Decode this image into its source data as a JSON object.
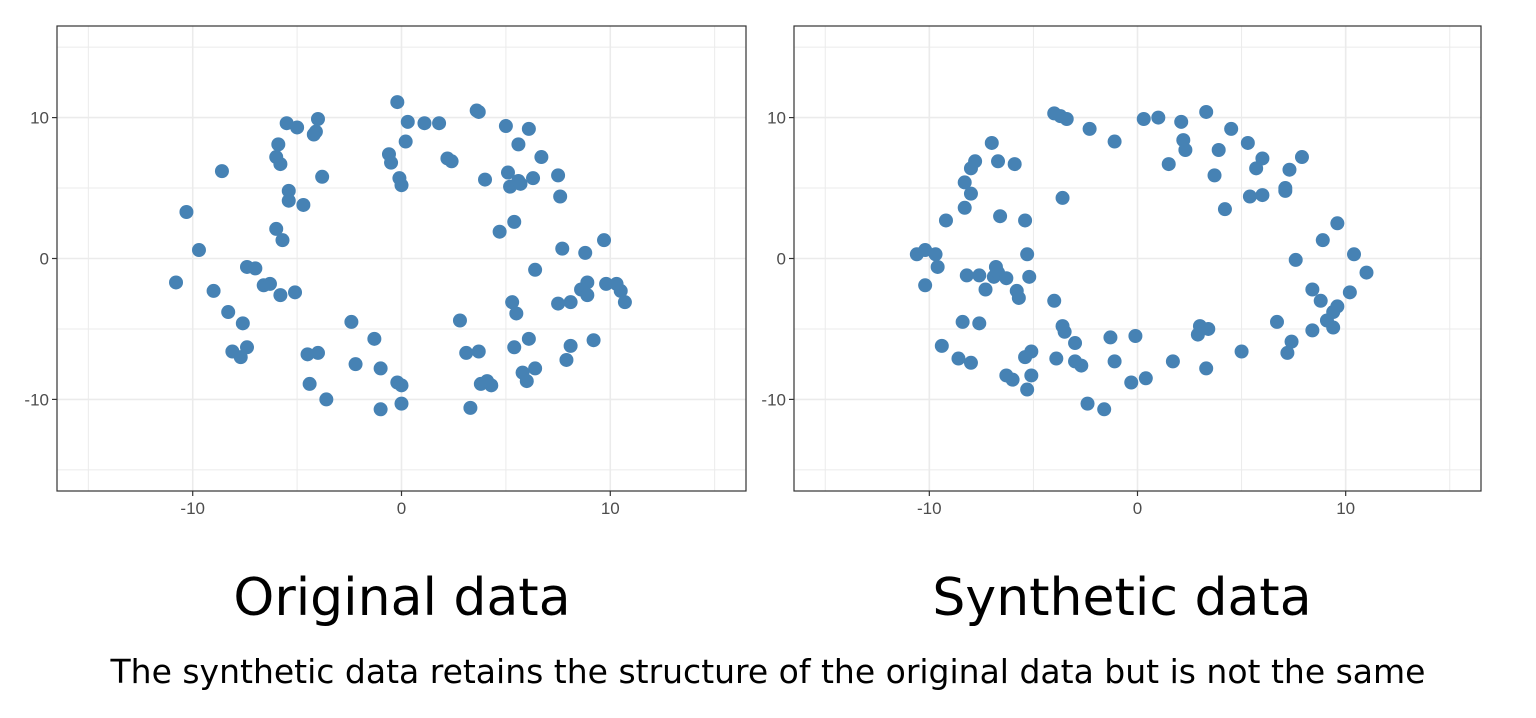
{
  "colors": {
    "point": "#4682b4",
    "grid": "#ebebeb",
    "panel_border": "#333333",
    "tick_text": "#4d4d4d",
    "background": "#ffffff"
  },
  "captions": {
    "left": "Original data",
    "right": "Synthetic data",
    "footnote": "The synthetic data retains the structure of the original data but is not the same"
  },
  "chart_data": [
    {
      "type": "scatter",
      "title": "",
      "xlabel": "",
      "ylabel": "",
      "xlim": [
        -16.5,
        16.5
      ],
      "ylim": [
        -16.5,
        16.5
      ],
      "xticks": [
        -10,
        0,
        10
      ],
      "yticks": [
        -10,
        0,
        10
      ],
      "grid": true,
      "points": [
        [
          -10.8,
          -1.7
        ],
        [
          -10.3,
          3.3
        ],
        [
          -9.7,
          0.6
        ],
        [
          -9.0,
          -2.3
        ],
        [
          -8.6,
          6.2
        ],
        [
          -8.3,
          -3.8
        ],
        [
          -8.1,
          -6.6
        ],
        [
          -7.7,
          -7.0
        ],
        [
          -7.6,
          -4.6
        ],
        [
          -7.4,
          -6.3
        ],
        [
          -7.4,
          -0.6
        ],
        [
          -7.0,
          -0.7
        ],
        [
          -6.6,
          -1.9
        ],
        [
          -6.3,
          -1.8
        ],
        [
          -6.0,
          7.2
        ],
        [
          -6.0,
          2.1
        ],
        [
          -5.9,
          8.1
        ],
        [
          -5.8,
          6.7
        ],
        [
          -5.8,
          -2.6
        ],
        [
          -5.7,
          1.3
        ],
        [
          -5.5,
          9.6
        ],
        [
          -5.4,
          4.8
        ],
        [
          -5.4,
          4.1
        ],
        [
          -5.1,
          -2.4
        ],
        [
          -5.0,
          9.3
        ],
        [
          -4.7,
          3.8
        ],
        [
          -4.5,
          -6.8
        ],
        [
          -4.4,
          -8.9
        ],
        [
          -4.2,
          8.8
        ],
        [
          -4.1,
          9.0
        ],
        [
          -4.0,
          -6.7
        ],
        [
          -4.0,
          9.9
        ],
        [
          -3.8,
          5.8
        ],
        [
          -3.6,
          -10.0
        ],
        [
          -2.4,
          -4.5
        ],
        [
          -2.2,
          -7.5
        ],
        [
          -1.3,
          -5.7
        ],
        [
          -1.0,
          -10.7
        ],
        [
          -1.0,
          -7.8
        ],
        [
          -0.6,
          7.4
        ],
        [
          -0.5,
          6.8
        ],
        [
          -0.2,
          -8.8
        ],
        [
          -0.2,
          11.1
        ],
        [
          -0.1,
          5.7
        ],
        [
          0.0,
          5.2
        ],
        [
          0.0,
          -10.3
        ],
        [
          0.0,
          -9.0
        ],
        [
          0.2,
          8.3
        ],
        [
          0.3,
          9.7
        ],
        [
          1.1,
          9.6
        ],
        [
          1.8,
          9.6
        ],
        [
          2.2,
          7.1
        ],
        [
          2.4,
          6.9
        ],
        [
          2.8,
          -4.4
        ],
        [
          3.1,
          -6.7
        ],
        [
          3.3,
          -10.6
        ],
        [
          3.6,
          10.5
        ],
        [
          3.7,
          10.4
        ],
        [
          3.7,
          -6.6
        ],
        [
          3.8,
          -8.9
        ],
        [
          4.0,
          5.6
        ],
        [
          4.1,
          -8.7
        ],
        [
          4.3,
          -9.0
        ],
        [
          4.7,
          1.9
        ],
        [
          5.0,
          9.4
        ],
        [
          5.1,
          6.1
        ],
        [
          5.2,
          5.1
        ],
        [
          5.3,
          -3.1
        ],
        [
          5.4,
          2.6
        ],
        [
          5.4,
          -6.3
        ],
        [
          5.5,
          -3.9
        ],
        [
          5.6,
          8.1
        ],
        [
          5.6,
          5.5
        ],
        [
          5.7,
          5.3
        ],
        [
          5.8,
          -8.1
        ],
        [
          6.0,
          -8.7
        ],
        [
          6.1,
          -5.7
        ],
        [
          6.1,
          9.2
        ],
        [
          6.3,
          5.7
        ],
        [
          6.4,
          -7.8
        ],
        [
          6.4,
          -0.8
        ],
        [
          6.7,
          7.2
        ],
        [
          7.5,
          -3.2
        ],
        [
          7.5,
          5.9
        ],
        [
          7.6,
          4.4
        ],
        [
          7.7,
          0.7
        ],
        [
          7.9,
          -7.2
        ],
        [
          8.1,
          -6.2
        ],
        [
          8.1,
          -3.1
        ],
        [
          8.6,
          -2.2
        ],
        [
          8.8,
          0.4
        ],
        [
          8.9,
          -2.6
        ],
        [
          8.9,
          -1.7
        ],
        [
          9.2,
          -5.8
        ],
        [
          9.7,
          1.3
        ],
        [
          9.8,
          -1.8
        ],
        [
          10.3,
          -1.8
        ],
        [
          10.5,
          -2.3
        ],
        [
          10.7,
          -3.1
        ]
      ]
    },
    {
      "type": "scatter",
      "title": "",
      "xlabel": "",
      "ylabel": "",
      "xlim": [
        -16.5,
        16.5
      ],
      "ylim": [
        -16.5,
        16.5
      ],
      "xticks": [
        -10,
        0,
        10
      ],
      "yticks": [
        -10,
        0,
        10
      ],
      "grid": true,
      "points": [
        [
          -10.6,
          0.3
        ],
        [
          -10.2,
          0.6
        ],
        [
          -10.2,
          -1.9
        ],
        [
          -9.7,
          0.3
        ],
        [
          -9.6,
          -0.6
        ],
        [
          -9.4,
          -6.2
        ],
        [
          -9.2,
          2.7
        ],
        [
          -8.6,
          -7.1
        ],
        [
          -8.4,
          -4.5
        ],
        [
          -8.3,
          5.4
        ],
        [
          -8.3,
          3.6
        ],
        [
          -8.2,
          -1.2
        ],
        [
          -8.0,
          6.4
        ],
        [
          -8.0,
          4.6
        ],
        [
          -8.0,
          -7.4
        ],
        [
          -7.8,
          6.9
        ],
        [
          -7.6,
          -4.6
        ],
        [
          -7.6,
          -1.2
        ],
        [
          -7.3,
          -2.2
        ],
        [
          -7.0,
          8.2
        ],
        [
          -6.9,
          -1.3
        ],
        [
          -6.8,
          -0.6
        ],
        [
          -6.7,
          -1.0
        ],
        [
          -6.7,
          6.9
        ],
        [
          -6.6,
          3.0
        ],
        [
          -6.3,
          -1.4
        ],
        [
          -6.3,
          -8.3
        ],
        [
          -6.0,
          -8.6
        ],
        [
          -5.9,
          6.7
        ],
        [
          -5.8,
          -2.3
        ],
        [
          -5.7,
          -2.8
        ],
        [
          -5.4,
          2.7
        ],
        [
          -5.4,
          -7.0
        ],
        [
          -5.3,
          0.3
        ],
        [
          -5.3,
          -9.3
        ],
        [
          -5.2,
          -1.3
        ],
        [
          -5.1,
          -6.6
        ],
        [
          -5.1,
          -8.3
        ],
        [
          -4.0,
          10.3
        ],
        [
          -4.0,
          -3.0
        ],
        [
          -3.9,
          -7.1
        ],
        [
          -3.7,
          10.1
        ],
        [
          -3.6,
          4.3
        ],
        [
          -3.6,
          -4.8
        ],
        [
          -3.5,
          -5.2
        ],
        [
          -3.4,
          9.9
        ],
        [
          -3.0,
          -6.0
        ],
        [
          -3.0,
          -7.3
        ],
        [
          -2.7,
          -7.6
        ],
        [
          -2.4,
          -10.3
        ],
        [
          -2.3,
          9.2
        ],
        [
          -1.6,
          -10.7
        ],
        [
          -1.3,
          -5.6
        ],
        [
          -1.1,
          8.3
        ],
        [
          -1.1,
          -7.3
        ],
        [
          -0.3,
          -8.8
        ],
        [
          -0.1,
          -5.5
        ],
        [
          0.3,
          9.9
        ],
        [
          0.4,
          -8.5
        ],
        [
          1.0,
          10.0
        ],
        [
          1.5,
          6.7
        ],
        [
          1.7,
          -7.3
        ],
        [
          2.1,
          9.7
        ],
        [
          2.2,
          8.4
        ],
        [
          2.3,
          7.7
        ],
        [
          2.9,
          -5.4
        ],
        [
          3.0,
          -4.8
        ],
        [
          3.3,
          10.4
        ],
        [
          3.3,
          -7.8
        ],
        [
          3.4,
          -5.0
        ],
        [
          3.7,
          5.9
        ],
        [
          3.9,
          7.7
        ],
        [
          4.2,
          3.5
        ],
        [
          4.5,
          9.2
        ],
        [
          5.0,
          -6.6
        ],
        [
          5.3,
          8.2
        ],
        [
          5.4,
          4.4
        ],
        [
          5.7,
          6.4
        ],
        [
          6.0,
          7.1
        ],
        [
          6.0,
          4.5
        ],
        [
          6.7,
          -4.5
        ],
        [
          7.1,
          4.8
        ],
        [
          7.1,
          5.0
        ],
        [
          7.2,
          -6.7
        ],
        [
          7.3,
          6.3
        ],
        [
          7.4,
          -5.9
        ],
        [
          7.6,
          -0.1
        ],
        [
          7.9,
          7.2
        ],
        [
          8.4,
          -2.2
        ],
        [
          8.4,
          -5.1
        ],
        [
          8.8,
          -3.0
        ],
        [
          8.9,
          1.3
        ],
        [
          9.1,
          -4.4
        ],
        [
          9.4,
          -3.8
        ],
        [
          9.4,
          -4.9
        ],
        [
          9.6,
          -3.4
        ],
        [
          9.6,
          2.5
        ],
        [
          10.2,
          -2.4
        ],
        [
          10.4,
          0.3
        ],
        [
          11.0,
          -1.0
        ]
      ]
    }
  ]
}
